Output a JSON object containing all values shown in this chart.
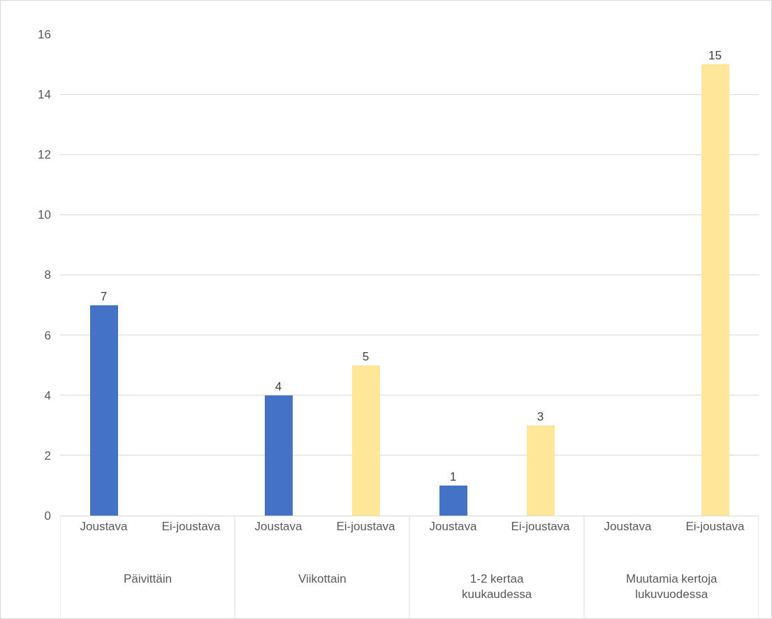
{
  "chart_data": {
    "type": "bar",
    "categories": [
      "Joustava",
      "Ei-joustava",
      "Joustava",
      "Ei-joustava",
      "Joustava",
      "Ei-joustava",
      "Joustava",
      "Ei-joustava"
    ],
    "values": [
      7,
      null,
      4,
      5,
      1,
      3,
      null,
      15
    ],
    "colors": [
      "#4472c4",
      "#ffe699",
      "#4472c4",
      "#ffe699",
      "#4472c4",
      "#ffe699",
      "#4472c4",
      "#ffe699"
    ],
    "ylim": [
      0,
      16
    ],
    "yticks": [
      0,
      2,
      4,
      6,
      8,
      10,
      12,
      14,
      16
    ],
    "grid": "y",
    "legend": false,
    "data_labels": true,
    "annotations": [
      "Päivittäin",
      "Viikottain",
      "1-2 kertaa\nkuukaudessa",
      "Muutamia kertoja\nlukuvuodessa"
    ]
  }
}
